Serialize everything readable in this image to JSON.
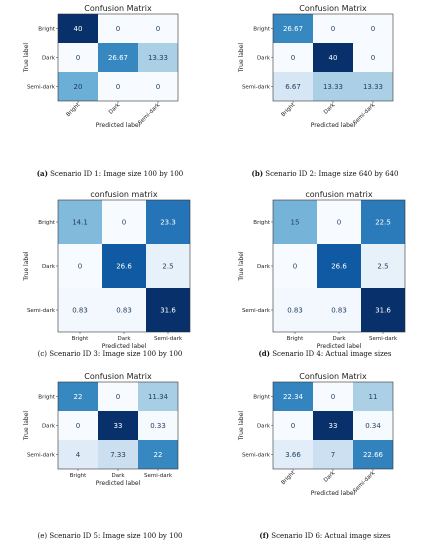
{
  "labels": {
    "true_label": "True label",
    "predicted_label": "Predicted label"
  },
  "chart_data": [
    {
      "type": "heatmap",
      "title": "Confusion Matrix",
      "caption_id": "(a)",
      "caption_text": " Scenario ID 1: Image size 100 by 100",
      "caption_bold": true,
      "rows": [
        "Bright",
        "Dark",
        "Semi-dark"
      ],
      "cols": [
        "Bright",
        "Dark",
        "Semi-dark"
      ],
      "x_tick_rotate": true,
      "values": [
        [
          40,
          0,
          0
        ],
        [
          0,
          26.67,
          13.33
        ],
        [
          20,
          0,
          0
        ]
      ],
      "value_labels": [
        [
          "40",
          "0",
          "0"
        ],
        [
          "0",
          "26.67",
          "13.33"
        ],
        [
          "20",
          "0",
          "0"
        ]
      ],
      "vmax": 40
    },
    {
      "type": "heatmap",
      "title": "Confusion Matrix",
      "caption_id": "(b)",
      "caption_text": " Scenario ID 2: Image size 640 by 640",
      "caption_bold": true,
      "rows": [
        "Bright",
        "Dark",
        "Semi-dark"
      ],
      "cols": [
        "Bright",
        "Dark",
        "Semi-dark"
      ],
      "x_tick_rotate": true,
      "values": [
        [
          26.67,
          0,
          0
        ],
        [
          0,
          40,
          0
        ],
        [
          6.67,
          13.33,
          13.33
        ]
      ],
      "value_labels": [
        [
          "26.67",
          "0",
          "0"
        ],
        [
          "0",
          "40",
          "0"
        ],
        [
          "6.67",
          "13.33",
          "13.33"
        ]
      ],
      "vmax": 40
    },
    {
      "type": "heatmap",
      "title": "confusion matrix",
      "caption_id": "(c)",
      "caption_text": " Scenario ID 3: Image size 100 by 100",
      "caption_bold": false,
      "rows": [
        "Bright",
        "Dark",
        "Semi-dark"
      ],
      "cols": [
        "Bright",
        "Dark",
        "Semi-dark"
      ],
      "x_tick_rotate": false,
      "values": [
        [
          14.1,
          0,
          23.3
        ],
        [
          0,
          26.6,
          2.5
        ],
        [
          0.83,
          0.83,
          31.6
        ]
      ],
      "value_labels": [
        [
          "14.1",
          "0",
          "23.3"
        ],
        [
          "0",
          "26.6",
          "2.5"
        ],
        [
          "0.83",
          "0.83",
          "31.6"
        ]
      ],
      "vmax": 31.6
    },
    {
      "type": "heatmap",
      "title": "confusion matrix",
      "caption_id": "(d)",
      "caption_text": " Scenario ID 4: Actual image sizes",
      "caption_bold": true,
      "rows": [
        "Bright",
        "Dark",
        "Semi-dark"
      ],
      "cols": [
        "Bright",
        "Dark",
        "Semi-dark"
      ],
      "x_tick_rotate": false,
      "values": [
        [
          15,
          0,
          22.5
        ],
        [
          0,
          26.6,
          2.5
        ],
        [
          0.83,
          0.83,
          31.6
        ]
      ],
      "value_labels": [
        [
          "15",
          "0",
          "22.5"
        ],
        [
          "0",
          "26.6",
          "2.5"
        ],
        [
          "0.83",
          "0.83",
          "31.6"
        ]
      ],
      "vmax": 31.6
    },
    {
      "type": "heatmap",
      "title": "Confusion Matrix",
      "caption_id": "(e)",
      "caption_text": " Scenario ID 5: Image size 100 by 100",
      "caption_bold": false,
      "rows": [
        "Bright",
        "Dark",
        "Semi-dark"
      ],
      "cols": [
        "Bright",
        "Dark",
        "Semi-dark"
      ],
      "x_tick_rotate": false,
      "values": [
        [
          22,
          0,
          11.34
        ],
        [
          0,
          33,
          0.33
        ],
        [
          4,
          7.33,
          22
        ]
      ],
      "value_labels": [
        [
          "22",
          "0",
          "11.34"
        ],
        [
          "0",
          "33",
          "0.33"
        ],
        [
          "4",
          "7.33",
          "22"
        ]
      ],
      "vmax": 33
    },
    {
      "type": "heatmap",
      "title": "Confusion Matrix",
      "caption_id": "(f)",
      "caption_text": " Scenario ID 6: Actual image sizes",
      "caption_bold": true,
      "rows": [
        "Bright",
        "Dark",
        "Semi-dark"
      ],
      "cols": [
        "Bright",
        "Dark",
        "Semi-dark"
      ],
      "x_tick_rotate": true,
      "values": [
        [
          22.34,
          0,
          11
        ],
        [
          0,
          33,
          0.34
        ],
        [
          3.66,
          7,
          22.66
        ]
      ],
      "value_labels": [
        [
          "22.34",
          "0",
          "11"
        ],
        [
          "0",
          "33",
          "0.34"
        ],
        [
          "3.66",
          "7",
          "22.66"
        ]
      ],
      "vmax": 33
    }
  ]
}
